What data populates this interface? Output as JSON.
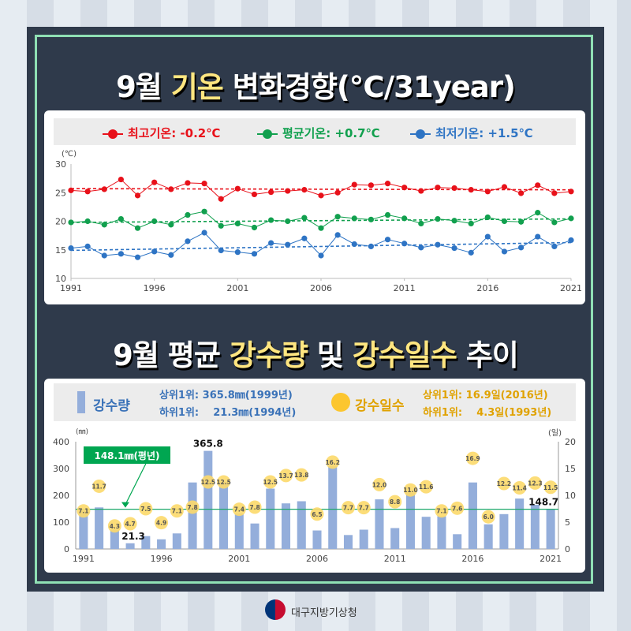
{
  "titles": {
    "temp": {
      "a": "9월 ",
      "b": "기온",
      "c": " 변화경향(℃/31year)"
    },
    "rain": {
      "a": "9월 평균 ",
      "b": "강수량",
      "c": " 및 ",
      "d": "강수일수",
      "e": " 추이"
    }
  },
  "temp_legend": {
    "max": "최고기온: -0.2℃",
    "avg": "평균기온: +0.7℃",
    "min": "최저기온: +1.5℃"
  },
  "rain_legend": {
    "precip_label": "강수량",
    "precip_top": "상위1위: 365.8㎜(1999년)",
    "precip_bottom": "하위1위:    21.3㎜(1994년)",
    "days_label": "강수일수",
    "days_top": "상위1위: 16.9일(2016년)",
    "days_bottom": "하위1위:    4.3일(1993년)"
  },
  "colors": {
    "max": "#e8111a",
    "avg": "#11a04e",
    "min": "#2e74c4",
    "bar": "#94aedb",
    "day_bubble": "#fcd96a",
    "normal_line": "#1ca86a",
    "normal_box": "#00a651"
  },
  "chart_data": [
    {
      "type": "line",
      "x": [
        1991,
        1992,
        1993,
        1994,
        1995,
        1996,
        1997,
        1998,
        1999,
        2000,
        2001,
        2002,
        2003,
        2004,
        2005,
        2006,
        2007,
        2008,
        2009,
        2010,
        2011,
        2012,
        2013,
        2014,
        2015,
        2016,
        2017,
        2018,
        2019,
        2020,
        2021
      ],
      "series": [
        {
          "name": "최고기온",
          "values": [
            25.4,
            25.2,
            25.6,
            27.3,
            24.5,
            26.8,
            25.6,
            26.7,
            26.6,
            23.9,
            25.7,
            24.7,
            25.1,
            25.3,
            25.5,
            24.5,
            25.0,
            26.4,
            26.3,
            26.6,
            25.9,
            25.3,
            25.9,
            25.8,
            25.5,
            25.2,
            26.0,
            24.9,
            26.3,
            24.9,
            25.2
          ]
        },
        {
          "name": "평균기온",
          "values": [
            19.8,
            20.0,
            19.4,
            20.4,
            18.8,
            20.0,
            19.4,
            21.1,
            21.7,
            19.2,
            19.6,
            18.9,
            20.2,
            20.0,
            20.6,
            18.8,
            20.8,
            20.5,
            20.3,
            21.1,
            20.5,
            19.6,
            20.4,
            20.1,
            19.6,
            20.7,
            20.0,
            19.9,
            21.5,
            19.8,
            20.5
          ]
        },
        {
          "name": "최저기온",
          "values": [
            15.3,
            15.6,
            14.0,
            14.3,
            13.7,
            14.7,
            14.1,
            16.5,
            18.0,
            14.9,
            14.6,
            14.3,
            16.2,
            15.9,
            17.0,
            14.0,
            17.6,
            16.0,
            15.6,
            16.8,
            16.1,
            15.4,
            15.9,
            15.3,
            14.5,
            17.3,
            14.7,
            15.4,
            17.3,
            15.6,
            16.7
          ]
        }
      ],
      "ylim": [
        10,
        30
      ],
      "y_ticks": [
        "10",
        "15",
        "20",
        "25",
        "30"
      ],
      "x_ticks": [
        "1991",
        "1996",
        "2001",
        "2006",
        "2011",
        "2016",
        "2021"
      ],
      "ylabel": "(℃)",
      "trendlines": true,
      "grid": false
    },
    {
      "type": "bar",
      "x": [
        1991,
        1992,
        1993,
        1994,
        1995,
        1996,
        1997,
        1998,
        1999,
        2000,
        2001,
        2002,
        2003,
        2004,
        2005,
        2006,
        2007,
        2008,
        2009,
        2010,
        2011,
        2012,
        2013,
        2014,
        2015,
        2016,
        2017,
        2018,
        2019,
        2020,
        2021
      ],
      "series": [
        {
          "name": "강수량",
          "values": [
            143,
            155,
            72,
            21.3,
            48,
            36,
            58,
            248,
            365.8,
            250,
            132,
            95,
            225,
            170,
            178,
            69,
            310,
            52,
            72,
            185,
            78,
            210,
            120,
            122,
            55,
            248,
            92,
            130,
            188,
            165,
            148.7
          ]
        },
        {
          "name": "강수일수",
          "values": [
            7.1,
            11.7,
            4.3,
            4.7,
            7.5,
            4.9,
            7.1,
            7.8,
            12.5,
            12.5,
            7.4,
            7.8,
            12.5,
            13.7,
            13.8,
            6.5,
            16.2,
            7.7,
            7.7,
            12.0,
            8.8,
            11.0,
            11.6,
            7.1,
            7.6,
            16.9,
            6.0,
            12.2,
            11.4,
            12.3,
            11.5
          ]
        }
      ],
      "y_left_label": "(㎜)",
      "y_right_label": "(일)",
      "ylim_left": [
        0,
        400
      ],
      "ylim_right": [
        0,
        20
      ],
      "y_left_ticks": [
        "0",
        "100",
        "200",
        "300",
        "400"
      ],
      "y_right_ticks": [
        "0",
        "5",
        "10",
        "15",
        "20"
      ],
      "x_ticks": [
        "1991",
        "1996",
        "2001",
        "2006",
        "2011",
        "2016",
        "2021"
      ],
      "normal_value": 148.1,
      "normal_label": "148.1㎜(평년)",
      "highlight_labels": {
        "1994": "21.3",
        "1999": "365.8",
        "2021": "148.7"
      }
    }
  ],
  "footer": {
    "agency": "대구지방기상청"
  }
}
